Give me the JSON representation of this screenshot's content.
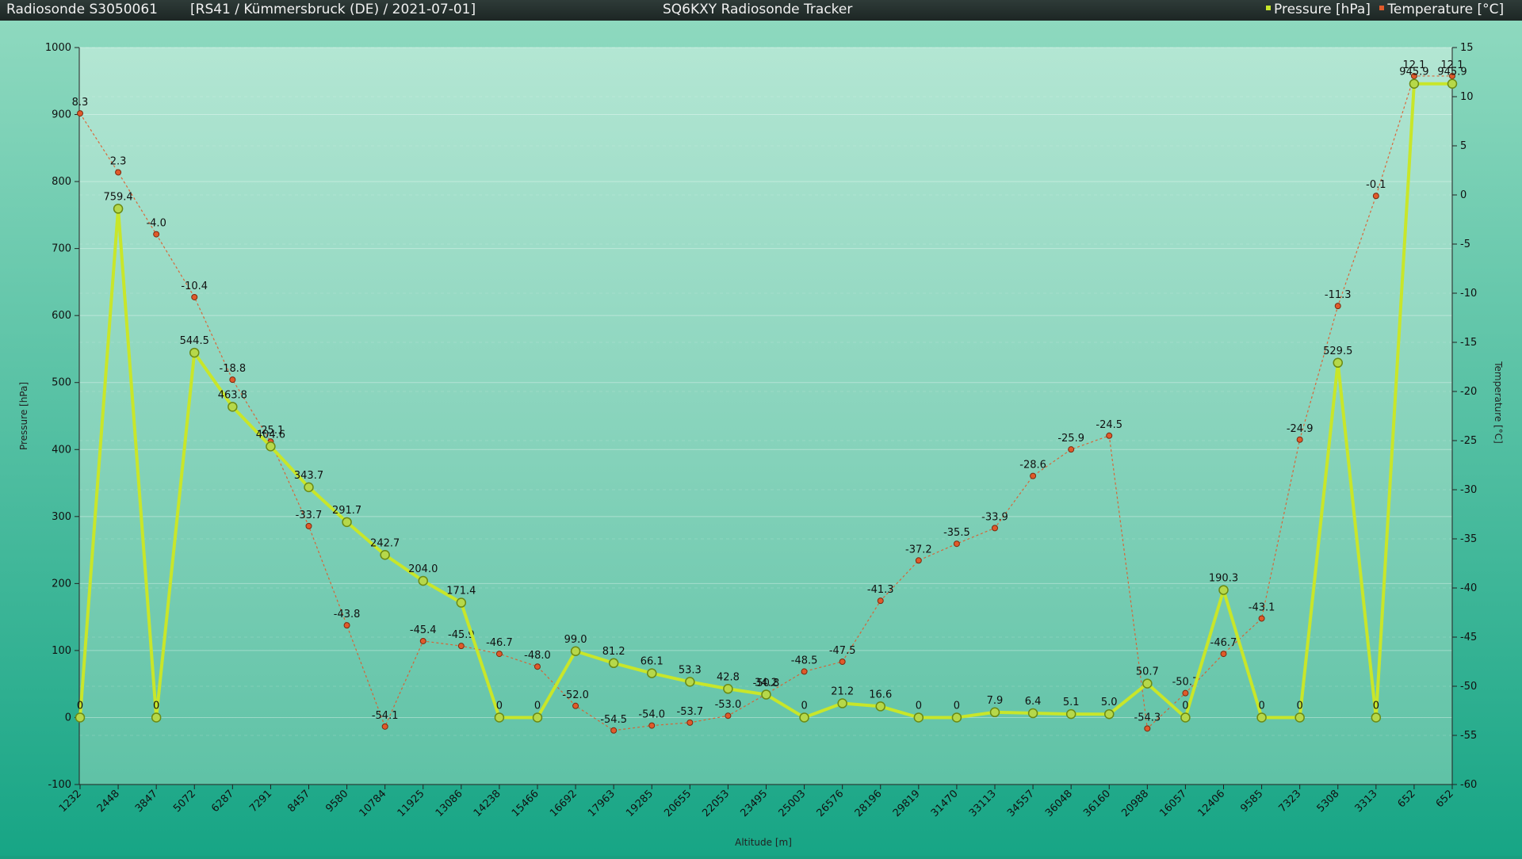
{
  "header": {
    "sonde": "Radiosonde S3050061",
    "info": "[RS41 / Kümmersbruck (DE) / 2021-07-01]",
    "app_title": "SQ6KXY Radiosonde Tracker",
    "legend_pressure": "Pressure [hPa]",
    "legend_temperature": "Temperature [°C]"
  },
  "colors": {
    "pressure": "#c8e62a",
    "temperature": "#e05a2a"
  },
  "chart_data": {
    "type": "line",
    "title": "",
    "xlabel": "Altitude [m]",
    "ylabel": "Pressure [hPa]",
    "y2label": "Temperature [°C]",
    "ylim": [
      -100,
      1000
    ],
    "y2lim": [
      -60,
      15
    ],
    "yticks": [
      "-100",
      "0",
      "100",
      "200",
      "300",
      "400",
      "500",
      "600",
      "700",
      "800",
      "900",
      "1000"
    ],
    "y2ticks": [
      "-60",
      "-55",
      "-50",
      "-45",
      "-40",
      "-35",
      "-30",
      "-25",
      "-20",
      "-15",
      "-10",
      "-5",
      "0",
      "5",
      "10",
      "15"
    ],
    "categories": [
      "1232",
      "2448",
      "3847",
      "5072",
      "6287",
      "7291",
      "8457",
      "9580",
      "10784",
      "11925",
      "13086",
      "14238",
      "15466",
      "16692",
      "17963",
      "19285",
      "20655",
      "22053",
      "23495",
      "25003",
      "26576",
      "28196",
      "29819",
      "31470",
      "33113",
      "34557",
      "36048",
      "36160",
      "20988",
      "16057",
      "12406",
      "9585",
      "7323",
      "5308",
      "3313",
      "652",
      "652"
    ],
    "series": [
      {
        "name": "Pressure [hPa]",
        "axis": "left",
        "values": [
          0,
          759.4,
          0,
          544.5,
          463.8,
          404.6,
          343.7,
          291.7,
          242.7,
          204.0,
          171.4,
          0,
          0,
          99.0,
          81.2,
          66.1,
          53.3,
          42.8,
          34.2,
          0,
          21.2,
          16.6,
          0,
          0,
          7.9,
          6.4,
          5.1,
          5.0,
          50.7,
          0,
          190.3,
          0,
          0,
          529.5,
          0,
          945.9,
          945.9
        ],
        "labels": [
          "0",
          "759.4",
          "0",
          "544.5",
          "463.8",
          "404.6",
          "343.7",
          "291.7",
          "242.7",
          "204.0",
          "171.4",
          "0",
          "0",
          "99.0",
          "81.2",
          "66.1",
          "53.3",
          "42.8",
          "34.2",
          "0",
          "21.2",
          "16.6",
          "0",
          "0",
          "7.9",
          "6.4",
          "5.1",
          "5.0",
          "50.7",
          "0",
          "190.3",
          "0",
          "0",
          "529.5",
          "0",
          "945.9",
          "945.9"
        ]
      },
      {
        "name": "Temperature [°C]",
        "axis": "right",
        "values": [
          8.3,
          2.3,
          -4.0,
          -10.4,
          -18.8,
          -25.1,
          -33.7,
          -43.8,
          -54.1,
          -45.4,
          -45.9,
          -46.7,
          -48.0,
          -52.0,
          -54.5,
          -54.0,
          -53.7,
          -53.0,
          -50.8,
          -48.5,
          -47.5,
          -41.3,
          -37.2,
          -35.5,
          -33.9,
          -28.6,
          -25.9,
          -24.5,
          -54.3,
          -50.7,
          -46.7,
          -43.1,
          -24.9,
          -11.3,
          -0.1,
          12.1,
          12.1
        ],
        "labels": [
          "8.3",
          "2.3",
          "-4.0",
          "-10.4",
          "-18.8",
          "-25.1",
          "-33.7",
          "-43.8",
          "-54.1",
          "-45.4",
          "-45.9",
          "-46.7",
          "-48.0",
          "-52.0",
          "-54.5",
          "-54.0",
          "-53.7",
          "-53.0",
          "-50.8",
          "-48.5",
          "-47.5",
          "-41.3",
          "-37.2",
          "-35.5",
          "-33.9",
          "-28.6",
          "-25.9",
          "-24.5",
          "-54.3",
          "-50.7",
          "-46.7",
          "-43.1",
          "-24.9",
          "-11.3",
          "-0.1",
          "12.1",
          "12.1"
        ]
      }
    ],
    "grid": true,
    "legend": "top-right"
  }
}
